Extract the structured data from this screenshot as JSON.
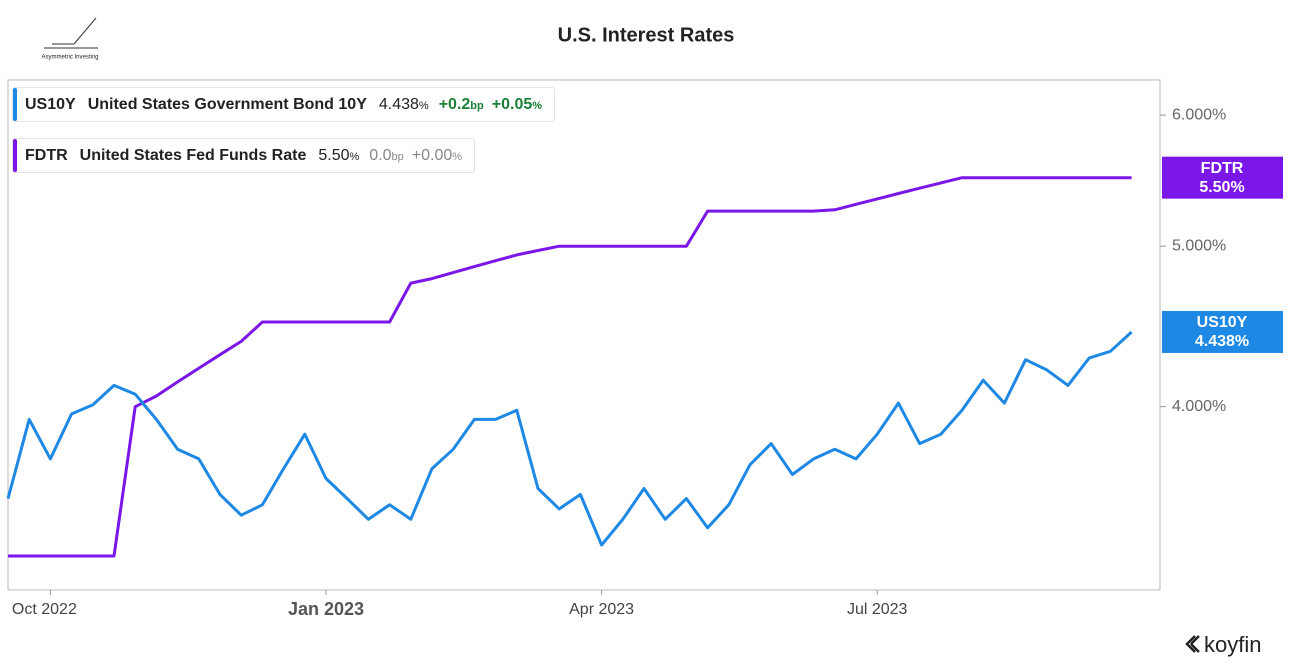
{
  "chart_data": {
    "type": "line",
    "title": "U.S. Interest Rates",
    "brand": "Asymmetric Investing",
    "source": "koyfin",
    "unit_pct": "%",
    "unit_bp": "bp",
    "categories": [
      null,
      null,
      "Oct 2022",
      null,
      null,
      null,
      null,
      null,
      null,
      null,
      null,
      null,
      null,
      null,
      null,
      "Jan 2023",
      null,
      null,
      null,
      null,
      null,
      null,
      null,
      null,
      null,
      null,
      null,
      null,
      "Apr 2023",
      null,
      null,
      null,
      null,
      null,
      null,
      null,
      null,
      null,
      null,
      null,
      null,
      "Jul 2023",
      null,
      null,
      null,
      null,
      null,
      null,
      null,
      null,
      null,
      null,
      null,
      null
    ],
    "series": [
      {
        "name": "US10Y",
        "description": "United States Government Bond 10Y",
        "last": "4.438",
        "change": "+0.2",
        "pct_change": "+0.05",
        "badge_label": "4.438%",
        "color": "#1e88e5",
        "values": [
          3.52,
          3.93,
          3.72,
          3.96,
          4.01,
          4.12,
          4.07,
          3.93,
          3.77,
          3.72,
          3.54,
          3.44,
          3.49,
          3.67,
          3.85,
          3.62,
          3.52,
          3.42,
          3.49,
          3.42,
          3.67,
          3.77,
          3.93,
          3.93,
          3.98,
          3.57,
          3.47,
          3.54,
          3.3,
          3.42,
          3.57,
          3.42,
          3.52,
          3.38,
          3.49,
          3.69,
          3.8,
          3.64,
          3.72,
          3.77,
          3.72,
          3.85,
          4.02,
          3.8,
          3.85,
          3.98,
          4.15,
          4.02,
          4.27,
          4.21,
          4.12,
          4.28,
          4.32,
          4.438
        ]
      },
      {
        "name": "FDTR",
        "description": "United States Fed Funds Rate",
        "last": "5.50",
        "change": "0.0",
        "pct_change": "+0.00",
        "badge_label": "5.50%",
        "color": "#7b16e8",
        "values": [
          3.25,
          3.25,
          3.25,
          3.25,
          3.25,
          3.25,
          4.0,
          4.06,
          4.14,
          4.22,
          4.3,
          4.38,
          4.5,
          4.5,
          4.5,
          4.5,
          4.5,
          4.5,
          4.5,
          4.75,
          4.78,
          4.82,
          4.86,
          4.9,
          4.94,
          4.97,
          5.0,
          5.0,
          5.0,
          5.0,
          5.0,
          5.0,
          5.0,
          5.25,
          5.25,
          5.25,
          5.25,
          5.25,
          5.25,
          5.26,
          5.3,
          5.34,
          5.38,
          5.42,
          5.46,
          5.5,
          5.5,
          5.5,
          5.5,
          5.5,
          5.5,
          5.5,
          5.5,
          5.5
        ]
      }
    ],
    "ylim": [
      3.1,
      6.3
    ],
    "ylog": true,
    "yaxis_side": "right",
    "yticks": [
      {
        "value": 4,
        "label": "4.000%"
      },
      {
        "value": 5,
        "label": "5.000%"
      },
      {
        "value": 6,
        "label": "6.000%"
      }
    ]
  }
}
